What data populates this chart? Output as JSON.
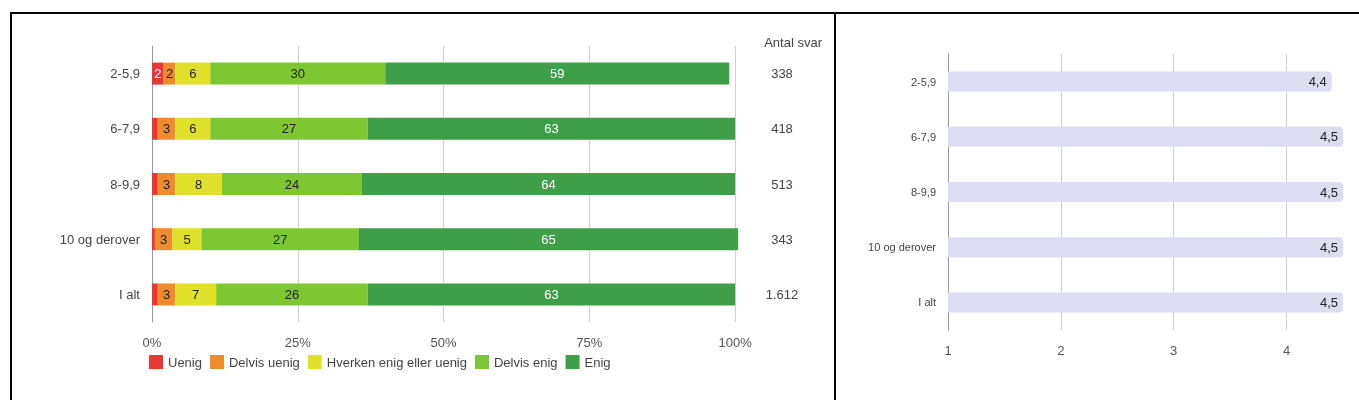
{
  "chart_data": [
    {
      "type": "bar",
      "orientation": "horizontal",
      "stacked": true,
      "categories": [
        "2-5,9",
        "6-7,9",
        "8-9,9",
        "10 og derover",
        "I alt"
      ],
      "series": [
        {
          "name": "Uenig",
          "color": "#e53935",
          "values": [
            2,
            1,
            1,
            0.5,
            1
          ],
          "value_labels": [
            "2",
            null,
            null,
            null,
            null
          ]
        },
        {
          "name": "Delvis uenig",
          "color": "#ef8b2c",
          "values": [
            2,
            3,
            3,
            3,
            3
          ],
          "value_labels": [
            "2",
            "3",
            "3",
            "3",
            "3"
          ]
        },
        {
          "name": "Hverken enig eller uenig",
          "color": "#dfe02a",
          "values": [
            6,
            6,
            8,
            5,
            7
          ],
          "value_labels": [
            "6",
            "6",
            "8",
            "5",
            "7"
          ]
        },
        {
          "name": "Delvis enig",
          "color": "#7dc832",
          "values": [
            30,
            27,
            24,
            27,
            26
          ],
          "value_labels": [
            "30",
            "27",
            "24",
            "27",
            "26"
          ]
        },
        {
          "name": "Enig",
          "color": "#3f9e48",
          "values": [
            59,
            63,
            64,
            65,
            63
          ],
          "value_labels": [
            "59",
            "63",
            "64",
            "65",
            "63"
          ]
        }
      ],
      "xlim": [
        0,
        100.5
      ],
      "xticks": [
        {
          "value": 0,
          "label": "0%"
        },
        {
          "value": 25,
          "label": "25%"
        },
        {
          "value": 50,
          "label": "50%"
        },
        {
          "value": 75,
          "label": "75%"
        },
        {
          "value": 100,
          "label": "100%"
        }
      ],
      "grid": "x",
      "legend": "bottom",
      "annotations": [
        "Antal svar",
        "338",
        "418",
        "513",
        "343",
        "1.612"
      ]
    },
    {
      "type": "bar",
      "orientation": "horizontal",
      "categories": [
        "2-5,9",
        "6-7,9",
        "8-9,9",
        "10 og derover",
        "I alt"
      ],
      "values": [
        4.4,
        4.5,
        4.5,
        4.5,
        4.5
      ],
      "color": "#dcdcf2",
      "value_labels": [
        "4,4",
        "4,5",
        "4,5",
        "4,5",
        "4,5"
      ],
      "xlim": [
        1,
        4.5
      ],
      "xticks": [
        1,
        2,
        3,
        4
      ],
      "grid": "x"
    }
  ]
}
